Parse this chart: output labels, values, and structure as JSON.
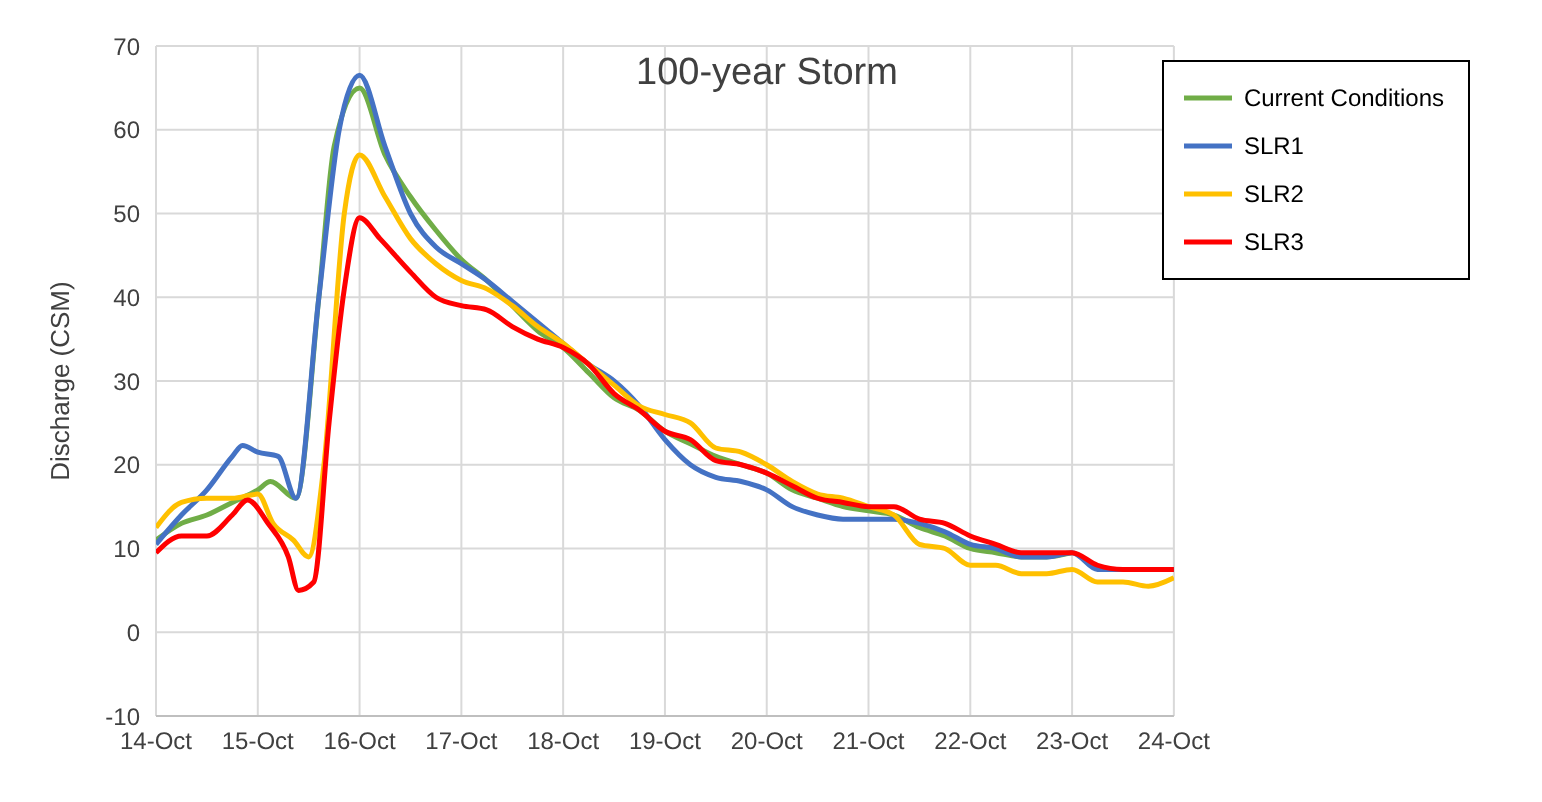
{
  "chart_data": {
    "type": "line",
    "title": "100-year Storm",
    "ylabel": "Discharge (CSM)",
    "xlim": [
      "--10-14",
      "--10-24"
    ],
    "xticks": [
      {
        "value": "--10-14",
        "label": "14-Oct"
      },
      {
        "value": "--10-15",
        "label": "15-Oct"
      },
      {
        "value": "--10-16",
        "label": "16-Oct"
      },
      {
        "value": "--10-17",
        "label": "17-Oct"
      },
      {
        "value": "--10-18",
        "label": "18-Oct"
      },
      {
        "value": "--10-19",
        "label": "19-Oct"
      },
      {
        "value": "--10-20",
        "label": "20-Oct"
      },
      {
        "value": "--10-21",
        "label": "21-Oct"
      },
      {
        "value": "--10-22",
        "label": "22-Oct"
      },
      {
        "value": "--10-23",
        "label": "23-Oct"
      },
      {
        "value": "--10-24",
        "label": "24-Oct"
      }
    ],
    "ylim": [
      -10,
      70
    ],
    "yticks": [
      -10,
      0,
      10,
      20,
      30,
      40,
      50,
      60,
      70
    ],
    "grid": true,
    "legend": "top right",
    "marker": "none",
    "line_style": "solid",
    "series": [
      {
        "name": "Current Conditions",
        "color": "#70ad47",
        "x": [
          "--10-14T00:00",
          "--10-14T06:00",
          "--10-14T12:00",
          "--10-14T18:00",
          "--10-15T00:00",
          "--10-15T03:00",
          "--10-15T09:00",
          "--10-15T14:24",
          "--10-15T18:00",
          "--10-16T00:00",
          "--10-16T06:00",
          "--10-16T12:00",
          "--10-16T18:00",
          "--10-17T00:00",
          "--10-17T06:00",
          "--10-17T12:00",
          "--10-17T18:00",
          "--10-18T00:00",
          "--10-18T06:00",
          "--10-18T12:00",
          "--10-18T18:00",
          "--10-19T00:00",
          "--10-19T06:00",
          "--10-19T12:00",
          "--10-19T18:00",
          "--10-20T00:00",
          "--10-20T06:00",
          "--10-20T12:00",
          "--10-20T18:00",
          "--10-21T00:00",
          "--10-21T06:00",
          "--10-21T12:00",
          "--10-21T18:00",
          "--10-22T00:00",
          "--10-22T06:00",
          "--10-22T12:00",
          "--10-22T18:00",
          "--10-23T00:00"
        ],
        "values": [
          11,
          13,
          14,
          15.5,
          17,
          18,
          16,
          40,
          58,
          65,
          57,
          52,
          48,
          44.5,
          42,
          39,
          36,
          34,
          31,
          28,
          26.5,
          24,
          22.5,
          21,
          20,
          19,
          17,
          16,
          15,
          14.5,
          14,
          12.5,
          11.5,
          10,
          9.5,
          9,
          9,
          9.5
        ]
      },
      {
        "name": "SLR1",
        "color": "#4472c4",
        "x": [
          "--10-14T00:00",
          "--10-14T06:00",
          "--10-14T12:00",
          "--10-14T18:00",
          "--10-14T20:24",
          "--10-15T00:00",
          "--10-15T04:48",
          "--10-15T09:00",
          "--10-15T14:24",
          "--10-15T19:12",
          "--10-16T00:00",
          "--10-16T06:00",
          "--10-16T12:00",
          "--10-16T18:00",
          "--10-17T00:00",
          "--10-17T06:00",
          "--10-17T12:00",
          "--10-17T18:00",
          "--10-18T00:00",
          "--10-18T06:00",
          "--10-18T12:00",
          "--10-18T18:00",
          "--10-19T00:00",
          "--10-19T06:00",
          "--10-19T12:00",
          "--10-19T18:00",
          "--10-20T00:00",
          "--10-20T06:00",
          "--10-20T12:00",
          "--10-20T18:00",
          "--10-21T00:00",
          "--10-21T06:00",
          "--10-21T12:00",
          "--10-21T18:00",
          "--10-22T00:00",
          "--10-22T06:00",
          "--10-22T12:00",
          "--10-22T18:00",
          "--10-23T00:00",
          "--10-23T06:00",
          "--10-23T12:00",
          "--10-23T18:00",
          "--10-24T00:00"
        ],
        "values": [
          10.5,
          14,
          17,
          21,
          22.3,
          21.5,
          21,
          16,
          40,
          60,
          66.5,
          58,
          50,
          46,
          44,
          42,
          39.5,
          37,
          34.5,
          32,
          30,
          27,
          23,
          20,
          18.5,
          18,
          17,
          15,
          14,
          13.5,
          13.5,
          13.5,
          13,
          12,
          10.5,
          10,
          9,
          9,
          9.5,
          7.5,
          7.5,
          7.5,
          7.5
        ]
      },
      {
        "name": "SLR2",
        "color": "#ffc000",
        "x": [
          "--10-14T00:00",
          "--10-14T06:00",
          "--10-14T12:00",
          "--10-14T18:00",
          "--10-15T00:00",
          "--10-15T03:36",
          "--10-15T08:24",
          "--10-15T12:00",
          "--10-15T15:36",
          "--10-15T20:24",
          "--10-16T00:00",
          "--10-16T06:00",
          "--10-16T12:00",
          "--10-16T18:00",
          "--10-17T00:00",
          "--10-17T06:00",
          "--10-17T12:00",
          "--10-17T18:00",
          "--10-18T00:00",
          "--10-18T06:00",
          "--10-18T12:00",
          "--10-18T18:00",
          "--10-19T00:00",
          "--10-19T06:00",
          "--10-19T12:00",
          "--10-19T18:00",
          "--10-20T00:00",
          "--10-20T06:00",
          "--10-20T12:00",
          "--10-20T18:00",
          "--10-21T00:00",
          "--10-21T06:00",
          "--10-21T12:00",
          "--10-21T18:00",
          "--10-22T00:00",
          "--10-22T06:00",
          "--10-22T12:00",
          "--10-22T18:00",
          "--10-23T00:00",
          "--10-23T06:00",
          "--10-23T12:00",
          "--10-23T18:00",
          "--10-24T00:00"
        ],
        "values": [
          12.5,
          15.5,
          16,
          16,
          16.5,
          13,
          11,
          9,
          20,
          50,
          57,
          52,
          47,
          44,
          42,
          41,
          39,
          36.5,
          34.5,
          32,
          29.5,
          27,
          26,
          25,
          22,
          21.5,
          20,
          18,
          16.5,
          16,
          15,
          14,
          10.5,
          10,
          8,
          8,
          7,
          7,
          7.5,
          6,
          6,
          5.5,
          6.5
        ]
      },
      {
        "name": "SLR3",
        "color": "#ff0000",
        "x": [
          "--10-14T00:00",
          "--10-14T06:00",
          "--10-14T12:00",
          "--10-14T18:00",
          "--10-14T21:36",
          "--10-15T02:24",
          "--10-15T07:12",
          "--10-15T09:36",
          "--10-15T13:12",
          "--10-15T16:48",
          "--10-15T20:24",
          "--10-16T00:00",
          "--10-16T04:48",
          "--10-16T12:00",
          "--10-16T18:00",
          "--10-17T00:00",
          "--10-17T06:00",
          "--10-17T12:00",
          "--10-17T18:00",
          "--10-18T00:00",
          "--10-18T06:00",
          "--10-18T12:00",
          "--10-18T18:00",
          "--10-19T00:00",
          "--10-19T06:00",
          "--10-19T12:00",
          "--10-19T18:00",
          "--10-20T00:00",
          "--10-20T06:00",
          "--10-20T12:00",
          "--10-20T18:00",
          "--10-21T00:00",
          "--10-21T06:00",
          "--10-21T12:00",
          "--10-21T18:00",
          "--10-22T00:00",
          "--10-22T06:00",
          "--10-22T12:00",
          "--10-22T18:00",
          "--10-23T00:00",
          "--10-23T06:00",
          "--10-23T12:00",
          "--10-23T18:00",
          "--10-24T00:00"
        ],
        "values": [
          9.5,
          11.5,
          11.5,
          14,
          15.8,
          13,
          9,
          5,
          6,
          25,
          41,
          49.5,
          47,
          43,
          40,
          39,
          38.5,
          36.5,
          35,
          34,
          32,
          28.5,
          26.5,
          24,
          23,
          20.5,
          20,
          19,
          17.5,
          16,
          15.5,
          15,
          15,
          13.5,
          13,
          11.5,
          10.5,
          9.5,
          9.5,
          9.5,
          8,
          7.5,
          7.5,
          7.5
        ]
      }
    ]
  }
}
